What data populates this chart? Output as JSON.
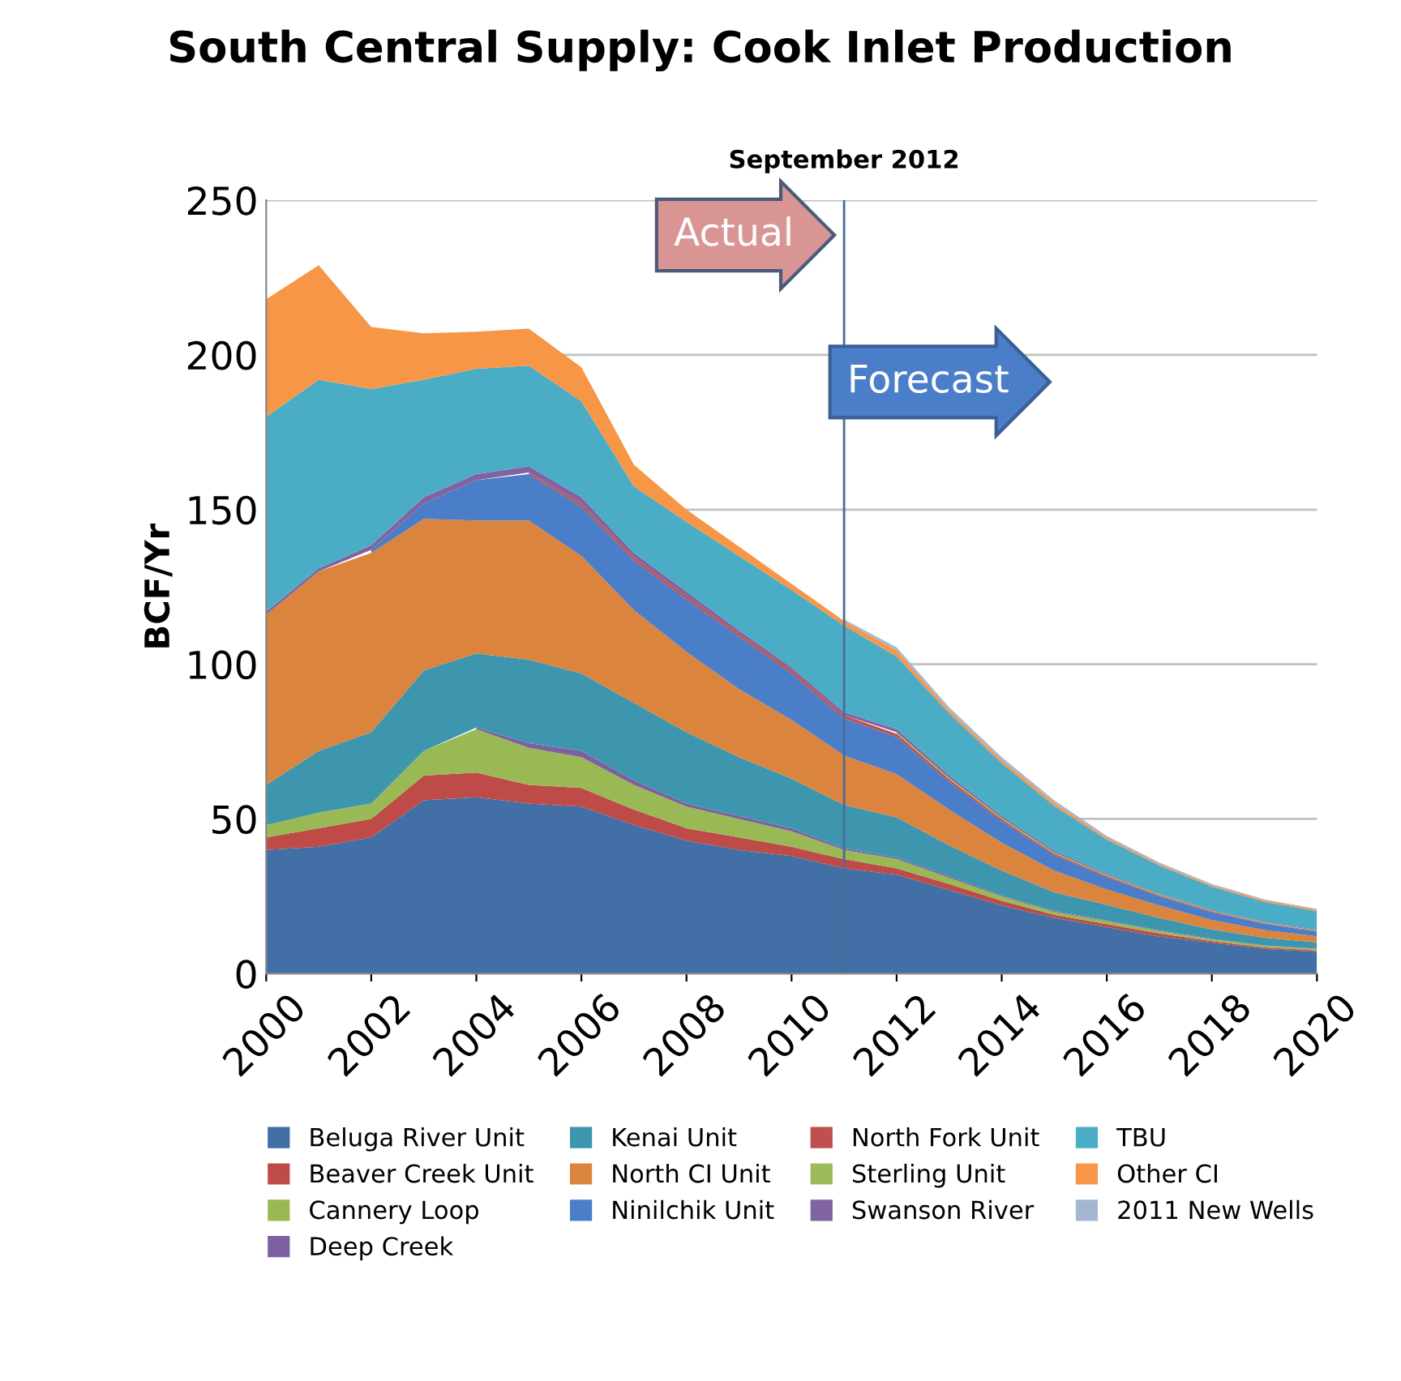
{
  "chart_data": {
    "type": "area",
    "stacked": true,
    "title": "South Central Supply: Cook Inlet Production",
    "ylabel": "BCF/Yr",
    "x": [
      2000,
      2001,
      2002,
      2003,
      2004,
      2005,
      2006,
      2007,
      2008,
      2009,
      2010,
      2011,
      2012,
      2013,
      2014,
      2015,
      2016,
      2017,
      2018,
      2019,
      2020
    ],
    "series": [
      {
        "name": "Beluga River Unit",
        "color": "#416fa6",
        "values": [
          40,
          41,
          44,
          56,
          57,
          55,
          54,
          48,
          43,
          40,
          38,
          34,
          32,
          27,
          22,
          18,
          15,
          12,
          10,
          8,
          7
        ]
      },
      {
        "name": "Beaver Creek Unit",
        "color": "#be4b48",
        "values": [
          4,
          6,
          6,
          8,
          8,
          6,
          6,
          5,
          4,
          4,
          3,
          3,
          2,
          2,
          1.5,
          1,
          1,
          1,
          0.5,
          0.5,
          0.5
        ]
      },
      {
        "name": "Cannery Loop",
        "color": "#98b954",
        "values": [
          4,
          5,
          5,
          8,
          14,
          12,
          10,
          8,
          7,
          6,
          5,
          3,
          3,
          2,
          1.5,
          1,
          1,
          0.8,
          0.6,
          0.5,
          0.5
        ]
      },
      {
        "name": "Deep Creek",
        "color": "#7d60a0",
        "values": [
          null,
          null,
          null,
          null,
          0.5,
          1.5,
          2,
          1.5,
          1,
          1,
          1,
          0.5,
          0.5,
          0.5,
          0.3,
          0.3,
          0.2,
          0.2,
          0.2,
          0.1,
          0.1
        ]
      },
      {
        "name": "Kenai Unit",
        "color": "#3d96ae",
        "values": [
          13,
          20,
          23,
          26,
          24,
          27,
          25,
          25,
          23,
          19,
          16,
          14,
          13,
          10,
          8,
          6,
          5,
          4,
          3,
          2.5,
          2
        ]
      },
      {
        "name": "North CI Unit",
        "color": "#db843d",
        "values": [
          55,
          58,
          58,
          49,
          43,
          45,
          38,
          30,
          26,
          22,
          19,
          16,
          14,
          11.5,
          9,
          7,
          5,
          4,
          3,
          2.5,
          2
        ]
      },
      {
        "name": "Ninilchik Unit",
        "color": "#4a7ec8",
        "values": [
          null,
          null,
          1,
          5,
          13,
          15,
          16,
          16,
          17,
          17,
          15,
          12,
          12,
          9,
          7,
          5,
          4,
          3,
          2.5,
          2,
          1.5
        ]
      },
      {
        "name": "North Fork Unit",
        "color": "#c0504d",
        "values": [
          null,
          null,
          null,
          null,
          null,
          0.5,
          1,
          1,
          1,
          1,
          1,
          1,
          1,
          0.8,
          0.6,
          0.5,
          0.4,
          0.3,
          0.3,
          0.2,
          0.2
        ]
      },
      {
        "name": "Sterling Unit",
        "color": "#9bbb59",
        "values": [
          null,
          null,
          null,
          null,
          null,
          null,
          null,
          null,
          null,
          null,
          null,
          null,
          0.5,
          0.5,
          0.5,
          0.4,
          0.3,
          0.3,
          0.2,
          0.2,
          0.2
        ]
      },
      {
        "name": "Swanson River",
        "color": "#8064a2",
        "values": [
          1,
          1,
          1.5,
          2,
          2,
          2,
          2,
          1.5,
          1.5,
          1,
          1,
          1,
          1,
          0.8,
          0.6,
          0.5,
          0.4,
          0.3,
          0.3,
          0.2,
          0.2
        ]
      },
      {
        "name": "TBU",
        "color": "#4bacc6",
        "values": [
          63,
          61,
          50.5,
          38,
          34,
          32.5,
          31,
          21.5,
          22.5,
          24,
          25,
          28,
          23.5,
          20,
          17,
          14.5,
          11,
          9,
          7.5,
          6.5,
          6
        ]
      },
      {
        "name": "Other CI",
        "color": "#f79646",
        "values": [
          38,
          37,
          20,
          15,
          12,
          12,
          11,
          7,
          4,
          3,
          2,
          1.5,
          2,
          1,
          1,
          1,
          0.6,
          0.5,
          0.5,
          0.5,
          0.5
        ]
      },
      {
        "name": "2011 New Wells",
        "color": "#a5b6d3",
        "values": [
          null,
          null,
          null,
          null,
          null,
          null,
          null,
          null,
          null,
          null,
          null,
          0.5,
          1,
          1,
          1,
          0.8,
          0.6,
          0.5,
          0.4,
          0.3,
          0.2
        ]
      }
    ],
    "xlim": [
      2000,
      2020
    ],
    "xticks": [
      2000,
      2002,
      2004,
      2006,
      2008,
      2010,
      2012,
      2014,
      2016,
      2018,
      2020
    ],
    "ylim": [
      0,
      250
    ],
    "yticks": [
      0,
      50,
      100,
      150,
      200,
      250
    ],
    "grid": "y",
    "legend": "bottom",
    "ref_lines": [
      {
        "axis": "x",
        "value": 2011,
        "label": "September 2012",
        "color": "#4a6b9a"
      }
    ],
    "annotations": [
      "Actual",
      "Forecast"
    ]
  }
}
